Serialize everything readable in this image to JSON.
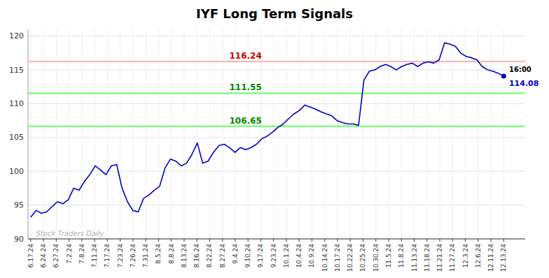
{
  "chart_data": {
    "type": "line",
    "title": "IYF Long Term Signals",
    "color": "#0000cc",
    "grid": true,
    "values": [
      93.2,
      94.2,
      93.8,
      94.0,
      94.8,
      95.5,
      95.2,
      95.8,
      97.5,
      97.2,
      98.5,
      99.5,
      100.8,
      100.2,
      99.5,
      100.8,
      101.0,
      97.5,
      95.5,
      94.2,
      94.0,
      96.0,
      96.5,
      97.2,
      97.8,
      100.5,
      101.8,
      101.5,
      100.8,
      101.2,
      102.5,
      104.2,
      101.2,
      101.5,
      102.8,
      103.8,
      104.0,
      103.5,
      102.8,
      103.5,
      103.2,
      103.5,
      104.0,
      104.8,
      105.2,
      105.8,
      106.5,
      107.0,
      107.8,
      108.5,
      109.0,
      109.8,
      109.5,
      109.2,
      108.8,
      108.5,
      108.2,
      107.5,
      107.2,
      107.0,
      107.0,
      106.8,
      113.5,
      114.8,
      115.0,
      115.5,
      115.8,
      115.5,
      115.0,
      115.5,
      115.8,
      116.0,
      115.5,
      116.0,
      116.2,
      116.0,
      116.5,
      119.0,
      118.8,
      118.5,
      117.5,
      117.0,
      116.8,
      116.5,
      115.5,
      115.0,
      114.8,
      114.5,
      114.08
    ],
    "xlim": [
      -0.5,
      92
    ],
    "xticks": [
      {
        "value": 0,
        "label": "6.17.24"
      },
      {
        "value": 2.378378,
        "label": "6.24.24"
      },
      {
        "value": 4.756757,
        "label": "6.27.24"
      },
      {
        "value": 7.135135,
        "label": "7.2.24"
      },
      {
        "value": 9.513514,
        "label": "7.8.24"
      },
      {
        "value": 11.891892,
        "label": "7.11.24"
      },
      {
        "value": 14.27027,
        "label": "7.17.24"
      },
      {
        "value": 16.648649,
        "label": "7.23.24"
      },
      {
        "value": 19.027027,
        "label": "7.26.24"
      },
      {
        "value": 21.405405,
        "label": "7.31.24"
      },
      {
        "value": 23.783784,
        "label": "8.5.24"
      },
      {
        "value": 26.162162,
        "label": "8.8.24"
      },
      {
        "value": 28.540541,
        "label": "8.13.24"
      },
      {
        "value": 30.918919,
        "label": "8.16.24"
      },
      {
        "value": 33.297297,
        "label": "8.22.24"
      },
      {
        "value": 35.675676,
        "label": "8.27.24"
      },
      {
        "value": 38.054054,
        "label": "9.4.24"
      },
      {
        "value": 40.432432,
        "label": "9.10.24"
      },
      {
        "value": 42.810811,
        "label": "9.17.24"
      },
      {
        "value": 45.189189,
        "label": "9.23.24"
      },
      {
        "value": 47.567568,
        "label": "10.1.24"
      },
      {
        "value": 49.945946,
        "label": "10.4.24"
      },
      {
        "value": 52.324324,
        "label": "10.9.24"
      },
      {
        "value": 54.702703,
        "label": "10.14.24"
      },
      {
        "value": 57.081081,
        "label": "10.17.24"
      },
      {
        "value": 59.459459,
        "label": "10.22.24"
      },
      {
        "value": 61.837838,
        "label": "10.25.24"
      },
      {
        "value": 64.216216,
        "label": "10.30.24"
      },
      {
        "value": 66.594595,
        "label": "11.5.24"
      },
      {
        "value": 68.972973,
        "label": "11.8.24"
      },
      {
        "value": 71.351351,
        "label": "11.13.24"
      },
      {
        "value": 73.72973,
        "label": "11.18.24"
      },
      {
        "value": 76.108108,
        "label": "11.21.24"
      },
      {
        "value": 78.486486,
        "label": "11.27.24"
      },
      {
        "value": 80.864865,
        "label": "12.3.24"
      },
      {
        "value": 83.243243,
        "label": "12.6.24"
      },
      {
        "value": 85.621622,
        "label": "12.11.24"
      },
      {
        "value": 88,
        "label": "12.13.24"
      }
    ],
    "ylim": [
      90,
      121
    ],
    "yticks": [
      90,
      95,
      100,
      105,
      110,
      115,
      120
    ],
    "reference_lines": [
      {
        "value": 116.24,
        "label": "116.24",
        "color": "#ffb3b3",
        "label_color": "#cc0000"
      },
      {
        "value": 111.55,
        "label": "111.55",
        "color": "#66ff66",
        "label_color": "#008800"
      },
      {
        "value": 106.65,
        "label": "106.65",
        "color": "#66ff66",
        "label_color": "#008800"
      }
    ],
    "annotations": [
      {
        "text": "16:00",
        "color": "#000000"
      },
      {
        "text": "114.08",
        "color": "#0000cc"
      }
    ],
    "watermark": "Stock Traders Daily"
  }
}
